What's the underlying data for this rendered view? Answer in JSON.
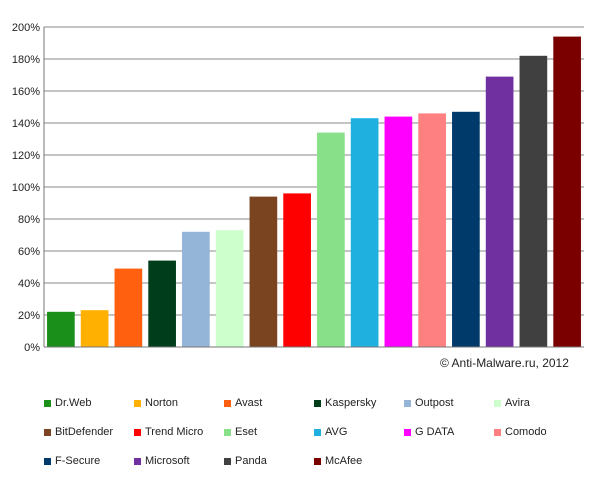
{
  "chart_data": {
    "type": "bar",
    "categories": [
      "Dr.Web",
      "Norton",
      "Avast",
      "Kaspersky",
      "Outpost",
      "Avira",
      "BitDefender",
      "Trend Micro",
      "Eset",
      "AVG",
      "G DATA",
      "Comodo",
      "F-Secure",
      "Microsoft",
      "Panda",
      "McAfee"
    ],
    "values": [
      22,
      23,
      49,
      54,
      72,
      73,
      94,
      96,
      134,
      143,
      144,
      146,
      147,
      169,
      182,
      194
    ],
    "colors": [
      "#1a8f1a",
      "#ffb000",
      "#ff6010",
      "#003d1a",
      "#94b4d8",
      "#ccffcc",
      "#7a4420",
      "#ff0000",
      "#88e088",
      "#20b0e0",
      "#ff00ff",
      "#ff8080",
      "#003a6a",
      "#7030a0",
      "#404040",
      "#7a0000"
    ],
    "y_unit": "%",
    "ylim": [
      0,
      200
    ],
    "y_ticks": [
      0,
      20,
      40,
      60,
      80,
      100,
      120,
      140,
      160,
      180,
      200
    ],
    "grid": true,
    "legend_position": "bottom"
  },
  "copyright": "© Anti-Malware.ru, 2012"
}
